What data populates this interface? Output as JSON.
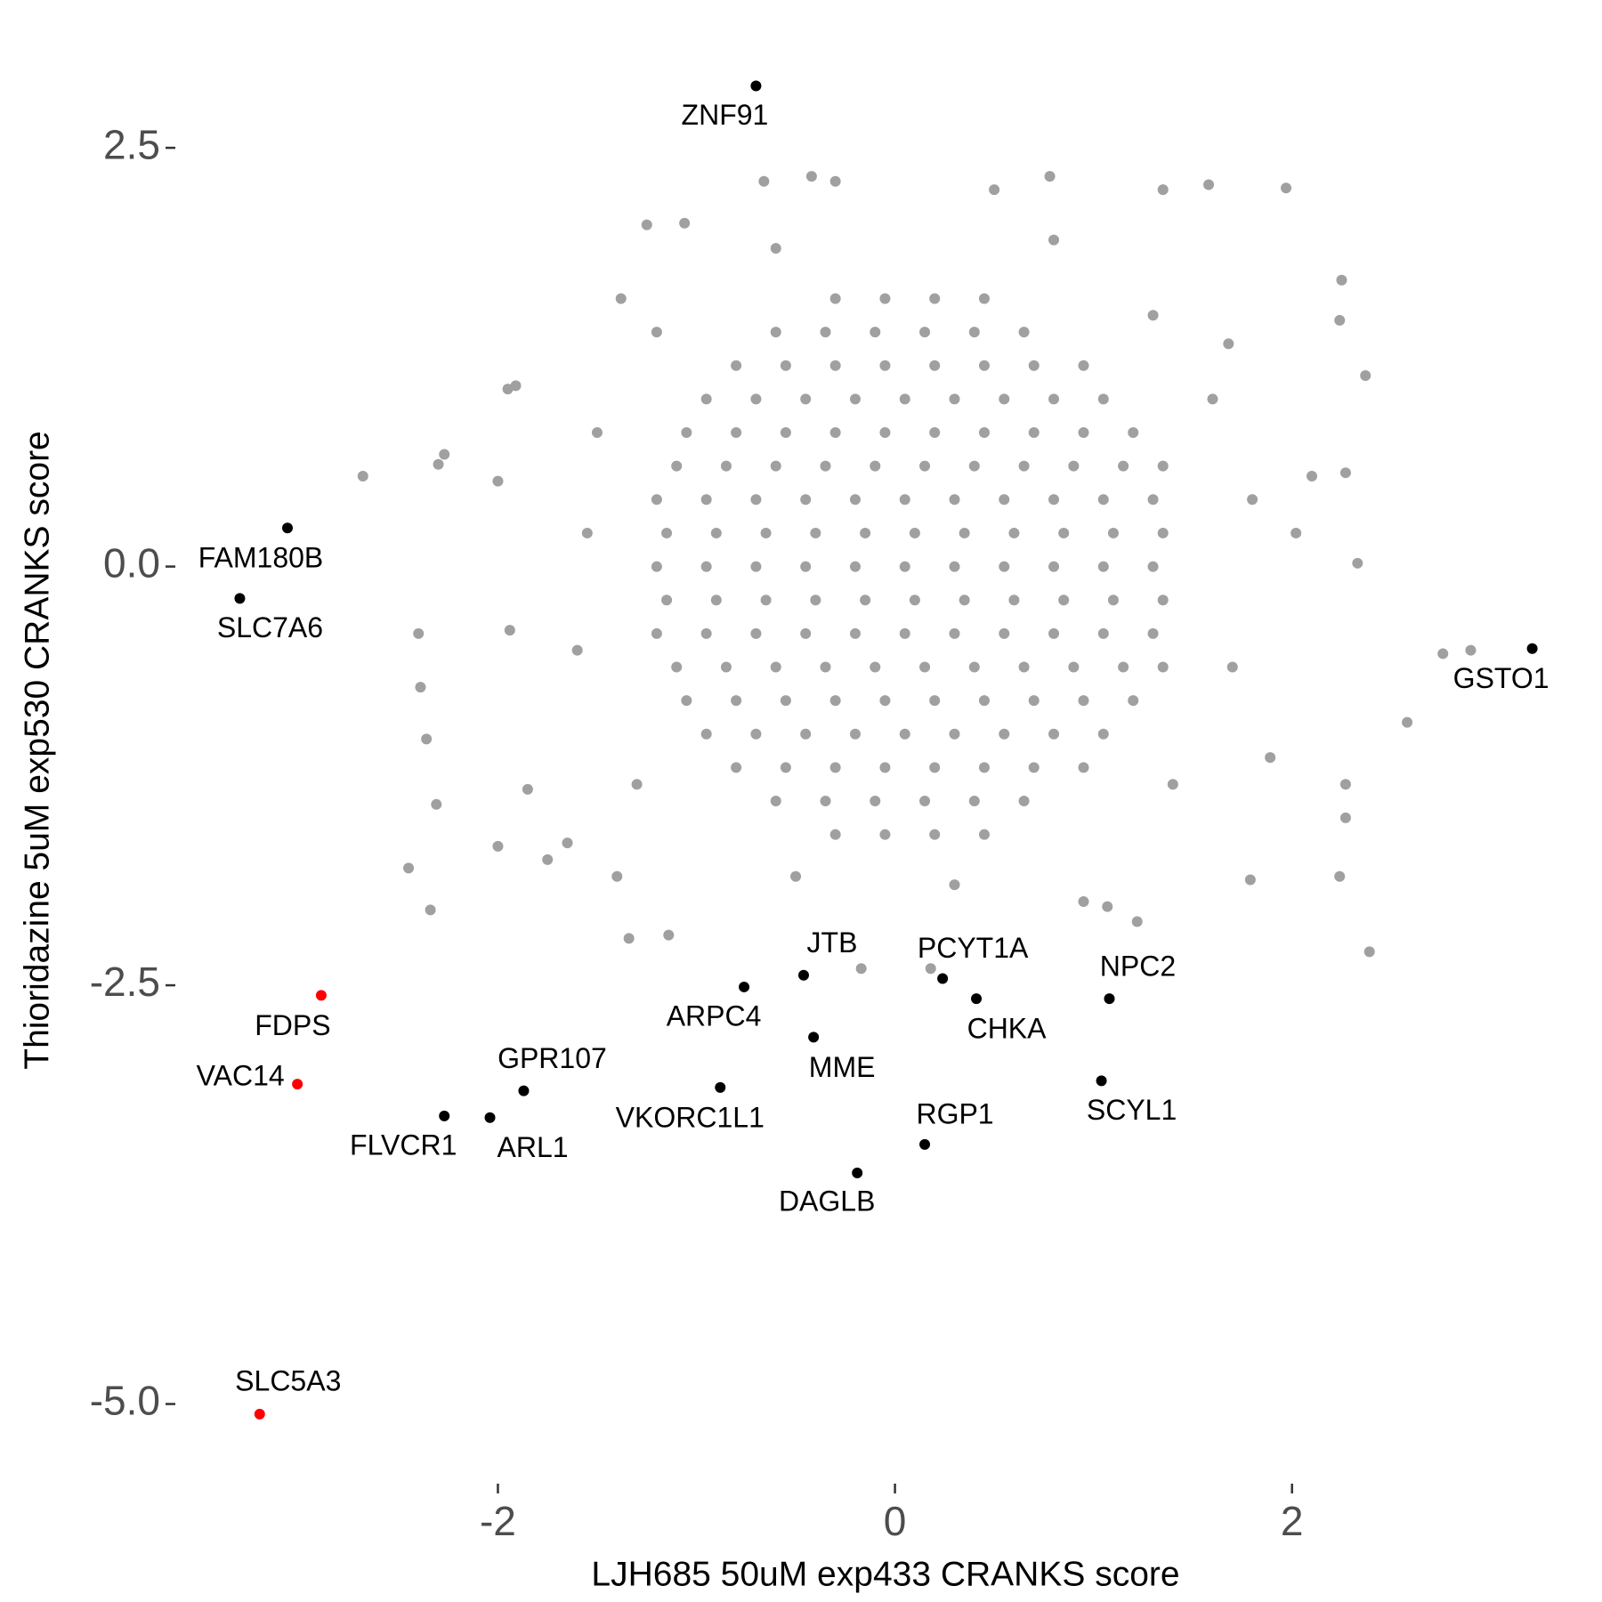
{
  "chart_data": {
    "type": "scatter",
    "xlabel": "LJH685 50uM exp433 CRANKS score",
    "ylabel": "Thioridazine 5uM exp530 CRANKS score",
    "xlim": [
      -3.45,
      3.4
    ],
    "ylim": [
      -5.3,
      3.0
    ],
    "xticks": [
      -2,
      0,
      2
    ],
    "yticks": [
      2.5,
      {
        "value": 0,
        "label": "0.0"
      },
      -2.5,
      {
        "value": -5,
        "label": "-5.0"
      }
    ],
    "series": [
      {
        "color": "#a0a0a0",
        "x": [
          -0.3,
          -0.05,
          0.2,
          0.45,
          -0.6,
          -0.35,
          -0.1,
          0.15,
          0.4,
          0.65,
          -0.8,
          -0.55,
          -0.3,
          -0.05,
          0.2,
          0.45,
          0.7,
          0.95,
          -0.95,
          -0.7,
          -0.45,
          -0.2,
          0.05,
          0.3,
          0.55,
          0.8,
          1.05,
          -1.05,
          -0.8,
          -0.55,
          -0.3,
          -0.05,
          0.2,
          0.45,
          0.7,
          0.95,
          1.2,
          -1.1,
          -0.85,
          -0.6,
          -0.35,
          -0.1,
          0.15,
          0.4,
          0.65,
          0.9,
          1.15,
          1.35,
          -1.2,
          -0.95,
          -0.7,
          -0.45,
          -0.2,
          0.05,
          0.3,
          0.55,
          0.8,
          1.05,
          1.3,
          -1.15,
          -0.9,
          -0.65,
          -0.4,
          -0.15,
          0.1,
          0.35,
          0.6,
          0.85,
          1.1,
          1.35,
          -1.2,
          -0.95,
          -0.7,
          -0.45,
          -0.2,
          0.05,
          0.3,
          0.55,
          0.8,
          1.05,
          1.3,
          -1.15,
          -0.9,
          -0.65,
          -0.4,
          -0.15,
          0.1,
          0.35,
          0.6,
          0.85,
          1.1,
          1.35,
          -1.2,
          -0.95,
          -0.7,
          -0.45,
          -0.2,
          0.05,
          0.3,
          0.55,
          0.8,
          1.05,
          1.3,
          -1.1,
          -0.85,
          -0.6,
          -0.35,
          -0.1,
          0.15,
          0.4,
          0.65,
          0.9,
          1.15,
          1.35,
          -1.05,
          -0.8,
          -0.55,
          -0.3,
          -0.05,
          0.2,
          0.45,
          0.7,
          0.95,
          1.2,
          -0.95,
          -0.7,
          -0.45,
          -0.2,
          0.05,
          0.3,
          0.55,
          0.8,
          1.05,
          -0.8,
          -0.55,
          -0.3,
          -0.05,
          0.2,
          0.45,
          0.7,
          0.95,
          -0.6,
          -0.35,
          -0.1,
          0.15,
          0.4,
          0.65,
          -0.3,
          -0.05,
          0.2,
          0.45,
          -2.68,
          -2.27,
          -2.3,
          -2.4,
          -2.39,
          -2.36,
          -2.31,
          -2.45,
          -2.34,
          -2.0,
          -1.94,
          -2.0,
          -1.95,
          -1.91,
          -1.38,
          -1.25,
          -1.06,
          -0.66,
          -0.42,
          -0.3,
          0.5,
          0.78,
          1.35,
          1.58,
          1.97,
          2.25,
          2.24,
          2.37,
          1.68,
          2.1,
          2.27,
          2.02,
          2.33,
          2.76,
          2.9,
          2.58,
          2.27,
          2.27,
          2.39,
          2.24,
          1.79,
          1.89,
          1.22,
          1.07,
          0.95,
          -1.14,
          -1.34,
          -1.75,
          -1.85,
          -0.17,
          0.18,
          -1.4,
          -1.65,
          -1.5,
          -1.6,
          -1.55,
          1.8,
          1.7,
          1.6,
          0.3,
          -0.5,
          0.8,
          -0.6,
          1.4,
          -1.3,
          1.3,
          -1.2
        ],
        "y": [
          1.6,
          1.6,
          1.6,
          1.6,
          1.4,
          1.4,
          1.4,
          1.4,
          1.4,
          1.4,
          1.2,
          1.2,
          1.2,
          1.2,
          1.2,
          1.2,
          1.2,
          1.2,
          1.0,
          1.0,
          1.0,
          1.0,
          1.0,
          1.0,
          1.0,
          1.0,
          1.0,
          0.8,
          0.8,
          0.8,
          0.8,
          0.8,
          0.8,
          0.8,
          0.8,
          0.8,
          0.8,
          0.6,
          0.6,
          0.6,
          0.6,
          0.6,
          0.6,
          0.6,
          0.6,
          0.6,
          0.6,
          0.6,
          0.4,
          0.4,
          0.4,
          0.4,
          0.4,
          0.4,
          0.4,
          0.4,
          0.4,
          0.4,
          0.4,
          0.2,
          0.2,
          0.2,
          0.2,
          0.2,
          0.2,
          0.2,
          0.2,
          0.2,
          0.2,
          0.2,
          0.0,
          0.0,
          0.0,
          0.0,
          0.0,
          0.0,
          0.0,
          0.0,
          0.0,
          0.0,
          0.0,
          -0.2,
          -0.2,
          -0.2,
          -0.2,
          -0.2,
          -0.2,
          -0.2,
          -0.2,
          -0.2,
          -0.2,
          -0.2,
          -0.4,
          -0.4,
          -0.4,
          -0.4,
          -0.4,
          -0.4,
          -0.4,
          -0.4,
          -0.4,
          -0.4,
          -0.4,
          -0.6,
          -0.6,
          -0.6,
          -0.6,
          -0.6,
          -0.6,
          -0.6,
          -0.6,
          -0.6,
          -0.6,
          -0.6,
          -0.8,
          -0.8,
          -0.8,
          -0.8,
          -0.8,
          -0.8,
          -0.8,
          -0.8,
          -0.8,
          -0.8,
          -1.0,
          -1.0,
          -1.0,
          -1.0,
          -1.0,
          -1.0,
          -1.0,
          -1.0,
          -1.0,
          -1.2,
          -1.2,
          -1.2,
          -1.2,
          -1.2,
          -1.2,
          -1.2,
          -1.2,
          -1.4,
          -1.4,
          -1.4,
          -1.4,
          -1.4,
          -1.4,
          -1.6,
          -1.6,
          -1.6,
          -1.6,
          0.54,
          0.67,
          0.61,
          -0.4,
          -0.72,
          -1.03,
          -1.42,
          -1.8,
          -2.05,
          -1.67,
          -0.38,
          0.51,
          1.06,
          1.08,
          1.6,
          2.04,
          2.05,
          2.3,
          2.33,
          2.3,
          2.25,
          2.33,
          2.25,
          2.28,
          2.26,
          1.71,
          1.47,
          1.14,
          1.33,
          0.54,
          0.56,
          0.2,
          0.02,
          -0.52,
          -0.5,
          -0.93,
          -1.3,
          -1.5,
          -2.3,
          -1.85,
          -1.87,
          -1.14,
          -2.12,
          -2.03,
          -2.0,
          -2.2,
          -2.22,
          -1.75,
          -1.33,
          -2.4,
          -2.4,
          -1.85,
          -1.65,
          0.8,
          -0.5,
          0.2,
          0.4,
          -0.6,
          1.0,
          -1.9,
          -1.85,
          1.95,
          1.9,
          -1.3,
          -1.3,
          1.5,
          1.4
        ]
      },
      {
        "color": "#000000",
        "x": [
          -0.7,
          -3.06,
          -3.3,
          3.21,
          -0.46,
          0.24,
          -0.76,
          0.41,
          1.08,
          -0.41,
          -1.87,
          -0.88,
          1.04,
          -2.27,
          -2.04,
          0.15,
          -0.19
        ],
        "y": [
          2.87,
          0.23,
          -0.19,
          -0.49,
          -2.44,
          -2.46,
          -2.51,
          -2.58,
          -2.58,
          -2.81,
          -3.13,
          -3.11,
          -3.07,
          -3.28,
          -3.29,
          -3.45,
          -3.62
        ],
        "labels": [
          "ZNF91",
          "FAM180B",
          "SLC7A6",
          "GSTO1",
          "JTB",
          "PCYT1A",
          "ARPC4",
          "CHKA",
          "NPC2",
          "MME",
          "GPR107",
          "VKORC1L1",
          "SCYL1",
          "FLVCR1",
          "ARL1",
          "RGP1",
          "DAGLB"
        ]
      },
      {
        "color": "#ff0000",
        "x": [
          -2.89,
          -3.01,
          -3.2
        ],
        "y": [
          -2.56,
          -3.09,
          -5.06
        ],
        "labels": [
          "FDPS",
          "VAC14",
          "SLC5A3"
        ]
      }
    ]
  }
}
